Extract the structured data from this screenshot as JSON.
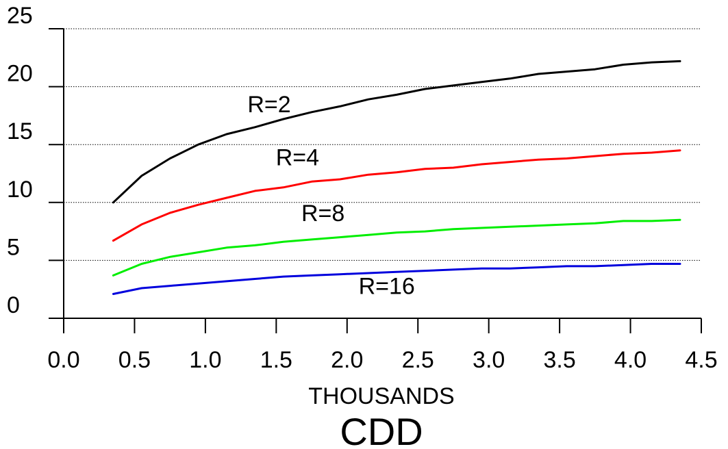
{
  "chart_data": {
    "type": "line",
    "title": "CDD",
    "xlabel": "THOUSANDS",
    "ylabel": "",
    "xlim": [
      0.0,
      4.5
    ],
    "ylim": [
      0,
      25
    ],
    "x_ticks": [
      "0.0",
      "0.5",
      "1.0",
      "1.5",
      "2.0",
      "2.5",
      "3.0",
      "3.5",
      "4.0",
      "4.5"
    ],
    "y_ticks": [
      "0",
      "5",
      "10",
      "15",
      "20",
      "25"
    ],
    "grid": "horizontal dotted",
    "legend": "none (series labelled inline)",
    "x": [
      0.35,
      0.55,
      0.75,
      0.95,
      1.15,
      1.35,
      1.55,
      1.75,
      1.95,
      2.15,
      2.35,
      2.55,
      2.75,
      2.95,
      3.15,
      3.35,
      3.55,
      3.75,
      3.95,
      4.15,
      4.35
    ],
    "series": [
      {
        "name": "R=2",
        "color": "#000000",
        "values": [
          10.0,
          12.3,
          13.8,
          15.0,
          15.9,
          16.5,
          17.2,
          17.8,
          18.3,
          18.9,
          19.3,
          19.8,
          20.1,
          20.4,
          20.7,
          21.1,
          21.3,
          21.5,
          21.9,
          22.1,
          22.2
        ]
      },
      {
        "name": "R=4",
        "color": "#ff0000",
        "values": [
          6.7,
          8.1,
          9.1,
          9.8,
          10.4,
          11.0,
          11.3,
          11.8,
          12.0,
          12.4,
          12.6,
          12.9,
          13.0,
          13.3,
          13.5,
          13.7,
          13.8,
          14.0,
          14.2,
          14.3,
          14.5
        ]
      },
      {
        "name": "R=8",
        "color": "#00ee00",
        "values": [
          3.7,
          4.7,
          5.3,
          5.7,
          6.1,
          6.3,
          6.6,
          6.8,
          7.0,
          7.2,
          7.4,
          7.5,
          7.7,
          7.8,
          7.9,
          8.0,
          8.1,
          8.2,
          8.4,
          8.4,
          8.5
        ]
      },
      {
        "name": "R=16",
        "color": "#0000dd",
        "values": [
          2.1,
          2.6,
          2.8,
          3.0,
          3.2,
          3.4,
          3.6,
          3.7,
          3.8,
          3.9,
          4.0,
          4.1,
          4.2,
          4.3,
          4.3,
          4.4,
          4.5,
          4.5,
          4.6,
          4.7,
          4.7
        ]
      }
    ],
    "series_label_anchors": [
      {
        "series": 0,
        "text": "R=2",
        "x": 1.45,
        "y": 17.8
      },
      {
        "series": 1,
        "text": "R=4",
        "x": 1.65,
        "y": 13.2
      },
      {
        "series": 2,
        "text": "R=8",
        "x": 1.83,
        "y": 8.4
      },
      {
        "series": 3,
        "text": "R=16",
        "x": 2.28,
        "y": 2.1
      }
    ]
  }
}
